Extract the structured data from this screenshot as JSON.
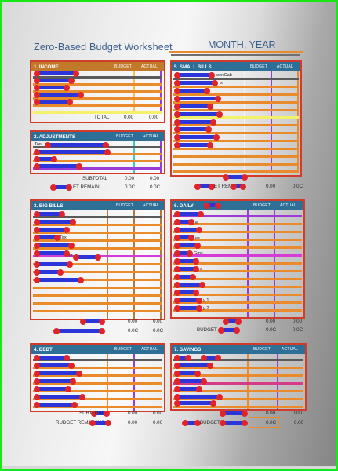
{
  "page": {
    "title": "Zero-Based Budget Worksheet",
    "month_label": "MONTH, YEAR"
  },
  "sections": {
    "income": {
      "header": "1. INCOME",
      "budget": "BUDGET",
      "actual": "ACTUAL",
      "total_label": "TOTAL",
      "total_budget": "0.00",
      "total_actual": "0.00"
    },
    "small_bills": {
      "header": "5. SMALL BILLS",
      "budget": "BUDGET",
      "actual": "ACTUAL",
      "frag1": "wer/Cab",
      "frag2": "s"
    },
    "adjustments": {
      "header": "2. ADJUSTMENTS",
      "budget": "BUDGET",
      "actual": "ACTUAL",
      "row1": "Tax",
      "subtotal_label": "SUBTOTAL",
      "subtotal_budget": "0.00",
      "subtotal_actual": "0.00",
      "remaining_label": "ET REMAINI",
      "remaining_budget": "0.0C",
      "remaining_actual": "0.0C"
    },
    "small_bills_footer": {
      "remaining_label": "ET REM",
      "budget": "0.00",
      "actual": "0.0C"
    },
    "big_bills": {
      "header": "3. BIG BILLS",
      "budget": "BUDGET",
      "actual": "ACTUAL",
      "frag_tax": "Tax",
      "frag_m": "M",
      "f1_budget": "0.00",
      "f1_actual": "0.00",
      "f2_budget": "0.0C",
      "f2_actual": "0.0C"
    },
    "daily": {
      "header": "6. DAILY",
      "budget": "BUDGET",
      "actual": "ACTUAL",
      "frag_e": "e",
      "frag_es": "es",
      "frag_gms": "Gms",
      "frag_s": "s",
      "frag_y1": "y 1",
      "frag_y2": "y 2",
      "f1_budget": "0.00",
      "f1_actual": "0.00",
      "budget_label": "BUDGET",
      "f2_budget": "0.0C",
      "f2_actual": "0.0C"
    },
    "debt": {
      "header": "4. DEBT",
      "budget": "BUDGET",
      "actual": "ACTUAL",
      "subtotal_label": "SUBTOTAL",
      "subtotal_budget": "0.00",
      "subtotal_actual": "0.00",
      "remaining_label": "RUDGET REMAINING",
      "remaining_budget": "0.00",
      "remaining_actual": "0.00"
    },
    "savings": {
      "header": "7. SAVINGS",
      "budget": "BUDGET",
      "actual": "ACTUAL",
      "f1_budget": "0.00",
      "f1_actual": "0.00",
      "budget_label": "BUDGET",
      "f2_budget": "0.0C",
      "f2_actual": "0.00"
    }
  },
  "colors": {
    "frame_border": "#17e617",
    "panel_border": "#d23a2a",
    "header_fill": "#2e6f98",
    "header_fill_income": "#c07a2a",
    "annotation_blue": "#2b35d8",
    "annotation_red": "#e0242a",
    "title_text": "#3a5f8c"
  }
}
